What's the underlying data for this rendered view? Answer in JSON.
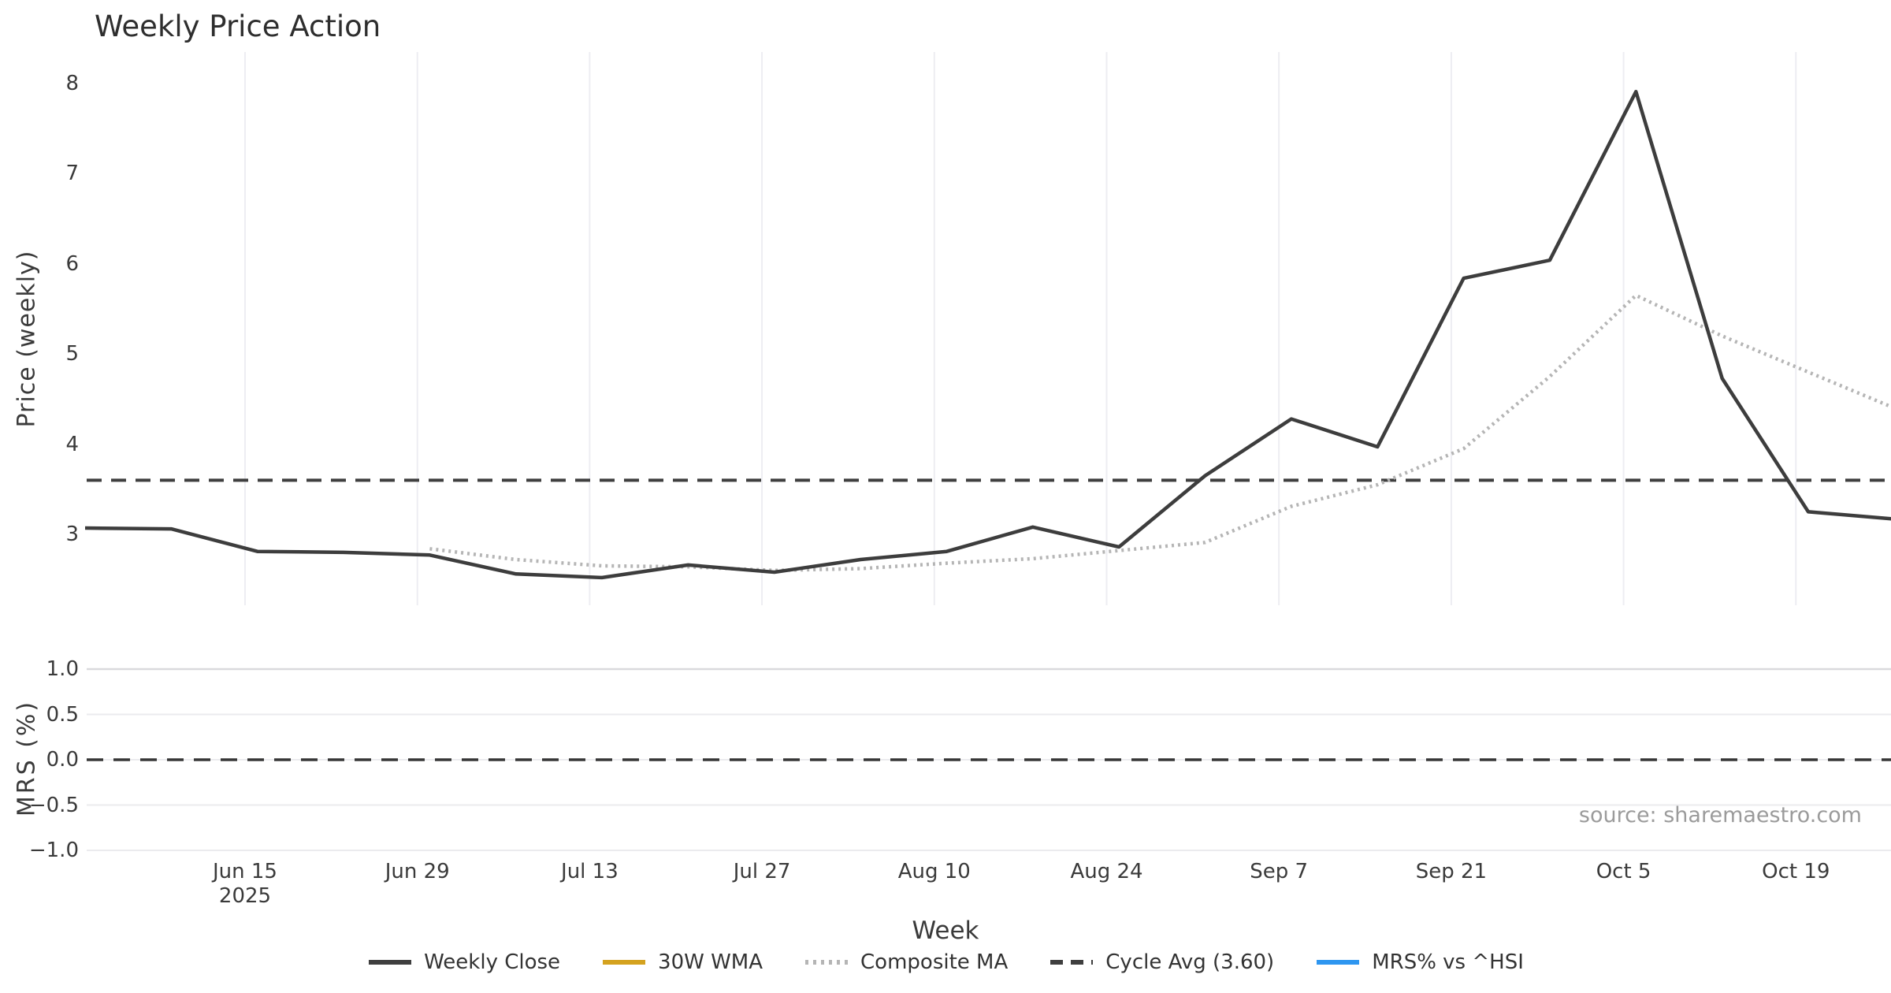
{
  "title": "Weekly Price Action",
  "source": "source: sharemaestro.com",
  "price_panel": {
    "y_axis_label": "Price (weekly)",
    "y_ticks": [
      8,
      7,
      6,
      5,
      4,
      3
    ],
    "cycle_avg_value": 3.6
  },
  "mrs_panel": {
    "y_axis_label": "MRS (%)",
    "y_ticks": [
      {
        "value": 1.0,
        "label": "1.0"
      },
      {
        "value": 0.5,
        "label": "0.5"
      },
      {
        "value": 0.0,
        "label": "0.0"
      },
      {
        "value": -0.5,
        "label": "−0.5"
      },
      {
        "value": -1.0,
        "label": "−1.0"
      }
    ],
    "zero_line_value": 0.0
  },
  "x_axis": {
    "label": "Week",
    "ticks": [
      {
        "label": "Jun 15",
        "sublabel": "2025"
      },
      {
        "label": "Jun 29",
        "sublabel": ""
      },
      {
        "label": "Jul 13",
        "sublabel": ""
      },
      {
        "label": "Jul 27",
        "sublabel": ""
      },
      {
        "label": "Aug 10",
        "sublabel": ""
      },
      {
        "label": "Aug 24",
        "sublabel": ""
      },
      {
        "label": "Sep 7",
        "sublabel": ""
      },
      {
        "label": "Sep 21",
        "sublabel": ""
      },
      {
        "label": "Oct 5",
        "sublabel": ""
      },
      {
        "label": "Oct 19",
        "sublabel": ""
      }
    ]
  },
  "legend": [
    {
      "label": "Weekly Close",
      "color": "#3f3f3f",
      "style": "solid"
    },
    {
      "label": "30W WMA",
      "color": "#d4a21f",
      "style": "solid"
    },
    {
      "label": "Composite MA",
      "color": "#b5b5b5",
      "style": "dotted"
    },
    {
      "label": "Cycle Avg (3.60)",
      "color": "#3f3f3f",
      "style": "dashed"
    },
    {
      "label": "MRS% vs ^HSI",
      "color": "#2e96f0",
      "style": "solid"
    }
  ],
  "chart_data": [
    {
      "type": "line",
      "title": "Weekly Price Action",
      "xlabel": "Week",
      "ylabel": "Price (weekly)",
      "ylim": [
        2.3,
        8.2
      ],
      "grid": "vertical-only",
      "legend_position": "bottom-center",
      "x_tick_labels": [
        "Jun 15 2025",
        "Jun 29",
        "Jul 13",
        "Jul 27",
        "Aug 10",
        "Aug 24",
        "Sep 7",
        "Sep 21",
        "Oct 5",
        "Oct 19"
      ],
      "x_week_start_dates": [
        "Jun 2",
        "Jun 9",
        "Jun 16",
        "Jun 23",
        "Jun 30",
        "Jul 7",
        "Jul 14",
        "Jul 21",
        "Jul 28",
        "Aug 4",
        "Aug 11",
        "Aug 18",
        "Aug 25",
        "Sep 1",
        "Sep 8",
        "Sep 15",
        "Sep 22",
        "Sep 29",
        "Oct 6",
        "Oct 13",
        "Oct 20",
        "Oct 27"
      ],
      "series": [
        {
          "name": "Weekly Close",
          "style": "solid",
          "color": "#3d3d3d",
          "start_index": 0,
          "values": [
            3.07,
            3.06,
            2.81,
            2.8,
            2.77,
            2.56,
            2.52,
            2.66,
            2.58,
            2.72,
            2.81,
            3.08,
            2.86,
            3.65,
            4.28,
            3.97,
            5.84,
            6.04,
            7.91,
            4.73,
            3.25,
            3.17
          ]
        },
        {
          "name": "Composite MA",
          "style": "dotted",
          "color": "#b5b5b5",
          "start_index": 4,
          "values": [
            2.84,
            2.72,
            2.65,
            2.64,
            2.6,
            2.62,
            2.68,
            2.73,
            2.82,
            2.91,
            3.31,
            3.55,
            3.95,
            4.75,
            5.65,
            5.2,
            4.8,
            4.4
          ]
        },
        {
          "name": "30W WMA",
          "style": "solid",
          "color": "#d4a21f",
          "start_index": 0,
          "values": []
        },
        {
          "name": "Cycle Avg",
          "style": "dashed",
          "color": "#3f3f3f",
          "constant": 3.6
        }
      ]
    },
    {
      "type": "line",
      "ylabel": "MRS (%)",
      "ylim": [
        -1.1,
        1.1
      ],
      "grid": "horizontal-only",
      "y_tick_labels": [
        "1.0",
        "0.5",
        "0.0",
        "−0.5",
        "−1.0"
      ],
      "series": [
        {
          "name": "MRS% vs ^HSI",
          "style": "solid",
          "color": "#2e96f0",
          "values": []
        },
        {
          "name": "Zero line",
          "style": "dashed",
          "color": "#363636",
          "constant": 0.0
        }
      ]
    }
  ]
}
